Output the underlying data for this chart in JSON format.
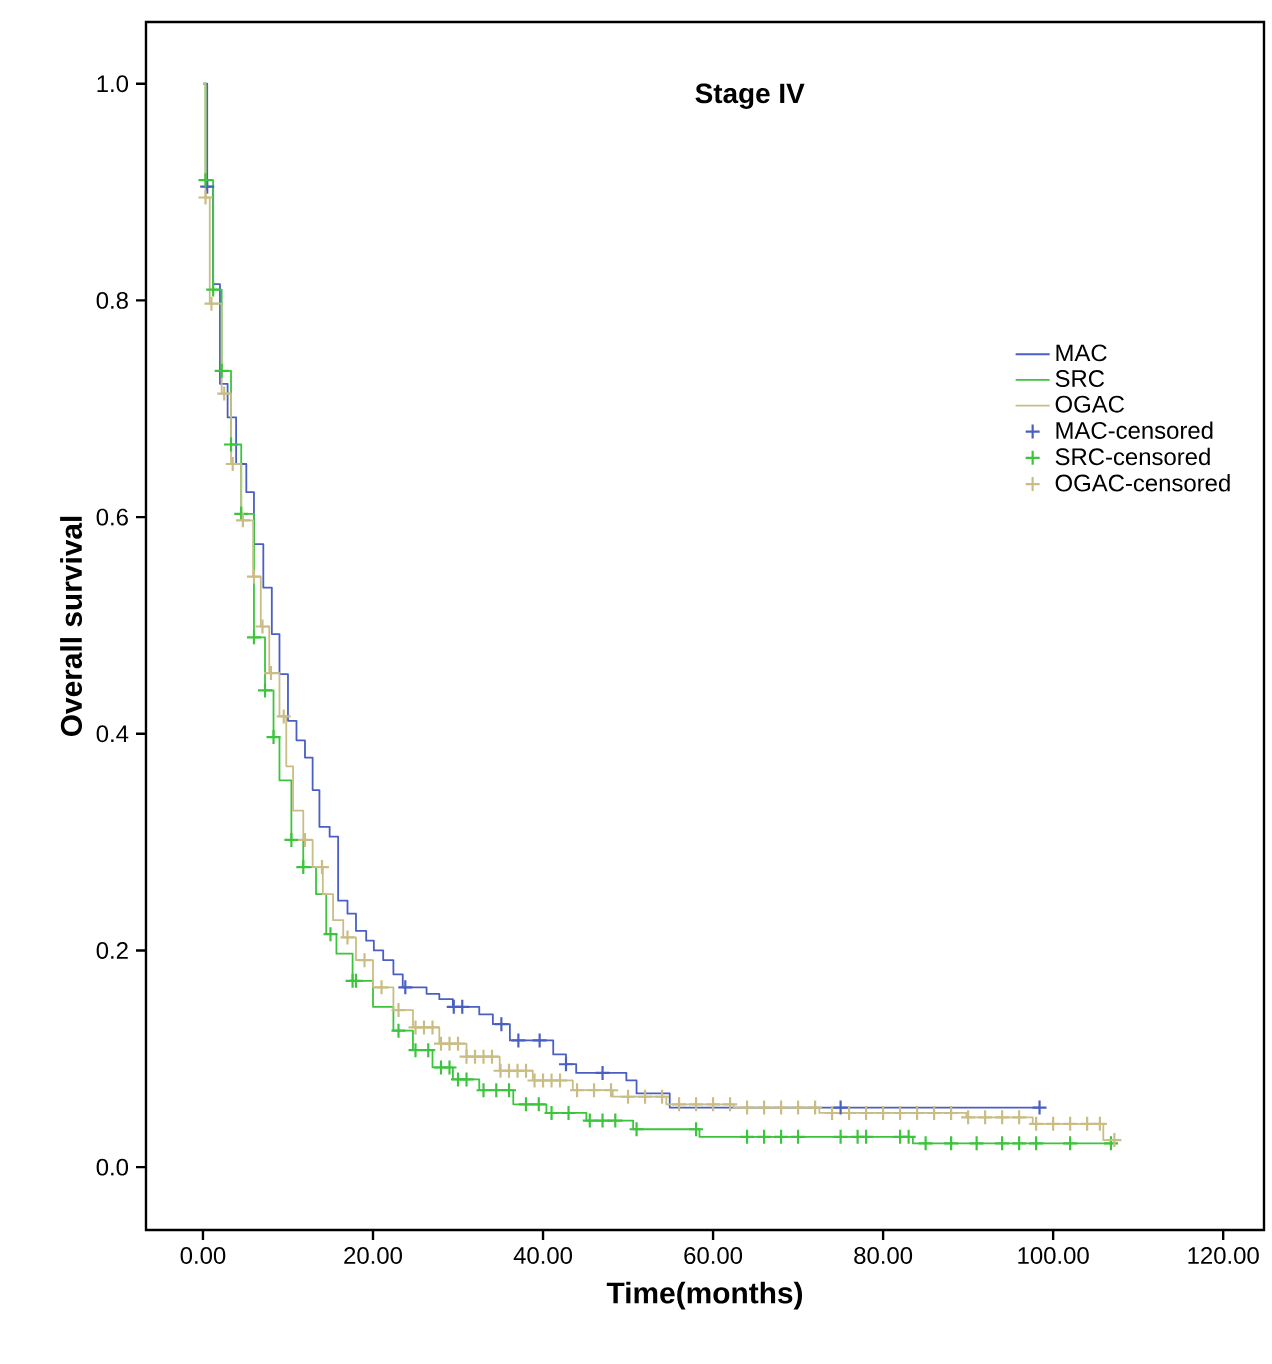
{
  "chart_data": {
    "type": "step",
    "title": "Stage IV",
    "xlabel": "Time(months)",
    "ylabel": "Overall survival",
    "xlim": [
      -6.7,
      124.8
    ],
    "ylim": [
      -0.058,
      1.057
    ],
    "xticks": [
      {
        "value": 0,
        "label": "0.00"
      },
      {
        "value": 20,
        "label": "20.00"
      },
      {
        "value": 40,
        "label": "40.00"
      },
      {
        "value": 60,
        "label": "60.00"
      },
      {
        "value": 80,
        "label": "80.00"
      },
      {
        "value": 100,
        "label": "100.00"
      },
      {
        "value": 120,
        "label": "120.00"
      }
    ],
    "yticks": [
      {
        "value": 0,
        "label": "0.0"
      },
      {
        "value": 0.2,
        "label": "0.2"
      },
      {
        "value": 0.4,
        "label": "0.4"
      },
      {
        "value": 0.6,
        "label": "0.6"
      },
      {
        "value": 0.8,
        "label": "0.8"
      },
      {
        "value": 1.0,
        "label": "1.0"
      }
    ],
    "grid": false,
    "legend": "top right",
    "series": [
      {
        "name": "MAC",
        "color": "#4a5fc1",
        "marker": "none",
        "line_style": "solid",
        "x": [
          0,
          0.5,
          1.2,
          2,
          2.9,
          3.9,
          5.1,
          6,
          7.1,
          8.1,
          9,
          10,
          11,
          12,
          12.9,
          13.7,
          14.9,
          15.9,
          17,
          18,
          19.2,
          20.1,
          21.2,
          22.4,
          23.5,
          26.3,
          27.8,
          29.4,
          32.5,
          34.1,
          36.1,
          41.2,
          42.7,
          43.9,
          49.8,
          51,
          54.9,
          98.4
        ],
        "values": [
          1.0,
          0.905,
          0.815,
          0.723,
          0.692,
          0.649,
          0.623,
          0.575,
          0.535,
          0.492,
          0.455,
          0.412,
          0.394,
          0.378,
          0.348,
          0.314,
          0.305,
          0.246,
          0.234,
          0.218,
          0.209,
          0.2,
          0.191,
          0.178,
          0.166,
          0.16,
          0.155,
          0.148,
          0.141,
          0.132,
          0.117,
          0.104,
          0.095,
          0.087,
          0.08,
          0.068,
          0.055,
          0.055
        ]
      },
      {
        "name": "SRC",
        "color": "#3cc43c",
        "marker": "none",
        "line_style": "solid",
        "x": [
          0,
          0.3,
          1.2,
          2.2,
          3.3,
          4.5,
          6,
          7.3,
          8.3,
          9,
          10.4,
          11.8,
          13.3,
          14.5,
          15.7,
          17.6,
          20,
          22.4,
          24.7,
          27,
          29.4,
          32.5,
          36.5,
          40.4,
          45.1,
          50.6,
          58.4,
          83.5,
          107.2
        ],
        "values": [
          1.0,
          0.911,
          0.81,
          0.735,
          0.667,
          0.603,
          0.489,
          0.44,
          0.397,
          0.357,
          0.302,
          0.277,
          0.252,
          0.215,
          0.197,
          0.172,
          0.148,
          0.126,
          0.108,
          0.092,
          0.081,
          0.071,
          0.058,
          0.05,
          0.043,
          0.035,
          0.028,
          0.022,
          0.022
        ]
      },
      {
        "name": "OGAC",
        "color": "#c9bd85",
        "marker": "none",
        "line_style": "solid",
        "x": [
          0,
          0.3,
          0.8,
          2.2,
          3.3,
          4.5,
          5.9,
          6.8,
          7.8,
          9,
          9.8,
          10.6,
          11.8,
          12.9,
          14.1,
          15.3,
          16.5,
          18,
          20,
          22.4,
          24.7,
          27.8,
          31,
          34.9,
          38.8,
          43.5,
          48.2,
          54.5,
          62.4,
          72.5,
          89.8,
          97.6,
          105.9,
          107.2
        ],
        "values": [
          1.0,
          0.895,
          0.797,
          0.714,
          0.649,
          0.597,
          0.545,
          0.499,
          0.456,
          0.416,
          0.37,
          0.329,
          0.302,
          0.277,
          0.252,
          0.228,
          0.212,
          0.191,
          0.166,
          0.145,
          0.129,
          0.114,
          0.102,
          0.089,
          0.08,
          0.071,
          0.065,
          0.058,
          0.055,
          0.05,
          0.046,
          0.04,
          0.025,
          0.025
        ]
      },
      {
        "name": "MAC-censored",
        "type": "scatter",
        "color": "#4a5fc1",
        "marker": "cross",
        "x": [
          0.5,
          23.8,
          29.5,
          30.5,
          35.1,
          37.1,
          39.6,
          42.7,
          47,
          75,
          98.4
        ],
        "values": [
          0.905,
          0.166,
          0.148,
          0.148,
          0.132,
          0.117,
          0.117,
          0.095,
          0.087,
          0.055,
          0.055
        ]
      },
      {
        "name": "SRC-censored",
        "type": "scatter",
        "color": "#3cc43c",
        "marker": "cross",
        "x": [
          0.3,
          1.2,
          2.2,
          3.3,
          4.5,
          6,
          7.3,
          8.3,
          10.4,
          11.8,
          15,
          17.6,
          18,
          23,
          25,
          26.5,
          28,
          29,
          30,
          31,
          33,
          34.5,
          36,
          38,
          39.5,
          41,
          43,
          45.5,
          47,
          48.5,
          51,
          58,
          64,
          66,
          68,
          70,
          75,
          77,
          78,
          82,
          83,
          85,
          88,
          91,
          94,
          96,
          98,
          102,
          106.8
        ],
        "values": [
          0.911,
          0.81,
          0.735,
          0.667,
          0.603,
          0.489,
          0.44,
          0.397,
          0.302,
          0.277,
          0.215,
          0.172,
          0.172,
          0.126,
          0.108,
          0.108,
          0.092,
          0.092,
          0.081,
          0.081,
          0.071,
          0.071,
          0.071,
          0.058,
          0.058,
          0.05,
          0.05,
          0.043,
          0.043,
          0.043,
          0.035,
          0.035,
          0.028,
          0.028,
          0.028,
          0.028,
          0.028,
          0.028,
          0.028,
          0.028,
          0.028,
          0.022,
          0.022,
          0.022,
          0.022,
          0.022,
          0.022,
          0.022,
          0.022
        ]
      },
      {
        "name": "OGAC-censored",
        "type": "scatter",
        "color": "#c9bd85",
        "marker": "cross",
        "x": [
          0.3,
          1,
          2.5,
          3.5,
          4.7,
          6,
          7,
          8,
          9.5,
          12,
          14,
          17,
          19,
          21,
          23,
          25,
          26,
          27,
          28,
          29,
          30,
          31,
          32,
          33,
          34,
          35,
          36,
          37,
          38,
          39,
          40,
          41,
          42,
          44,
          46,
          48,
          50,
          52,
          54,
          56,
          58,
          60,
          62,
          64,
          66,
          68,
          70,
          72,
          74,
          76,
          78,
          80,
          82,
          84,
          86,
          88,
          90,
          92,
          94,
          96,
          98,
          100,
          102,
          104,
          105.5,
          107.2
        ],
        "values": [
          0.895,
          0.797,
          0.714,
          0.649,
          0.597,
          0.545,
          0.499,
          0.456,
          0.416,
          0.302,
          0.277,
          0.212,
          0.191,
          0.166,
          0.145,
          0.129,
          0.129,
          0.129,
          0.114,
          0.114,
          0.114,
          0.102,
          0.102,
          0.102,
          0.102,
          0.089,
          0.089,
          0.089,
          0.089,
          0.08,
          0.08,
          0.08,
          0.08,
          0.071,
          0.071,
          0.071,
          0.065,
          0.065,
          0.065,
          0.058,
          0.058,
          0.058,
          0.058,
          0.055,
          0.055,
          0.055,
          0.055,
          0.055,
          0.05,
          0.05,
          0.05,
          0.05,
          0.05,
          0.05,
          0.05,
          0.05,
          0.046,
          0.046,
          0.046,
          0.046,
          0.04,
          0.04,
          0.04,
          0.04,
          0.04,
          0.025
        ]
      }
    ]
  }
}
